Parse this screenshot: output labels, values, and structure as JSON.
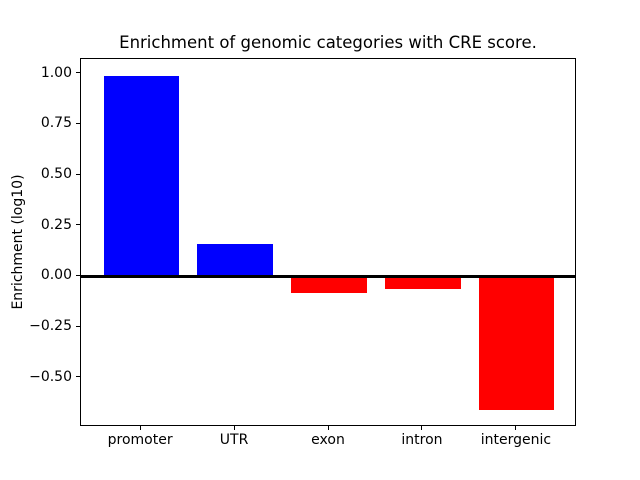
{
  "figure": {
    "background": "#ffffff",
    "text_color": "#000000"
  },
  "chart_data": {
    "type": "bar",
    "title": "Enrichment of genomic categories with CRE score.",
    "xlabel": "",
    "ylabel": "Enrichment (log10)",
    "categories": [
      "promoter",
      "UTR",
      "exon",
      "intron",
      "intergenic"
    ],
    "values": [
      0.99,
      0.16,
      -0.08,
      -0.06,
      -0.66
    ],
    "bar_colors": [
      "#0000ff",
      "#0000ff",
      "#ff0000",
      "#ff0000",
      "#ff0000"
    ],
    "positive_color": "#0000ff",
    "negative_color": "#ff0000",
    "bar_width": 0.8,
    "xlim": [
      -0.64,
      4.64
    ],
    "ylim": [
      -0.7425,
      1.0725
    ],
    "ytick_values": [
      1.0,
      0.75,
      0.5,
      0.25,
      0.0,
      -0.25,
      -0.5
    ],
    "ytick_labels": [
      "1.00",
      "0.75",
      "0.50",
      "0.25",
      "0.00",
      "−0.25",
      "−0.50"
    ],
    "zero_line": true,
    "grid": false,
    "legend": null
  }
}
